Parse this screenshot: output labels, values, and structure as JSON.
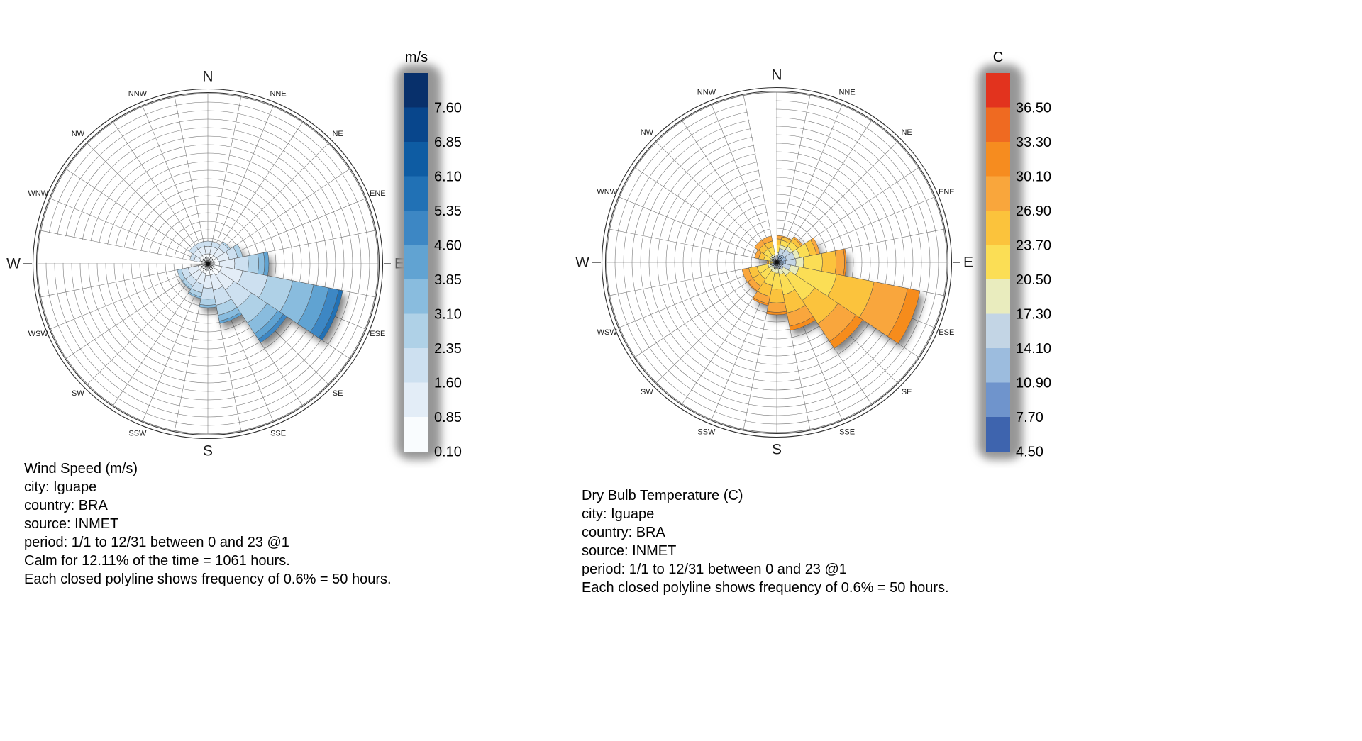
{
  "page": {
    "background": "#ffffff"
  },
  "chart_data": [
    {
      "type": "windrose",
      "title": "Wind Speed (m/s)",
      "legend_title": "m/s",
      "legend_labels": [
        "7.60",
        "6.85",
        "6.10",
        "5.35",
        "4.60",
        "3.85",
        "3.10",
        "2.35",
        "1.60",
        "0.85",
        "0.10"
      ],
      "legend_colors": [
        "#08306B",
        "#08468C",
        "#0E5CA3",
        "#2171B5",
        "#3D87C4",
        "#61A3D2",
        "#89BCDE",
        "#AFD1E7",
        "#CDE0F0",
        "#E3EDF7",
        "#F9FCFE"
      ],
      "bin_unit": "m/s",
      "ring_count": 20,
      "ring_frequency_percent": 0.6,
      "ring_frequency_hours": 50,
      "axis_max_percent": 12,
      "calm_percent": 12.11,
      "calm_hours": 1061,
      "gap_sector_deg": [
        270,
        281.25
      ],
      "directions": [
        "N",
        "NNE",
        "NE",
        "ENE",
        "E",
        "ESE",
        "SE",
        "SSE",
        "S",
        "SSW",
        "SW",
        "WSW",
        "W",
        "WNW",
        "NW",
        "NNW"
      ],
      "petal_rings_by_bin_low_to_high": [
        [
          1.0,
          0.9,
          0.6
        ],
        [
          1.0,
          0.9,
          0.6
        ],
        [
          1.0,
          1.1,
          0.7,
          0.2
        ],
        [
          1.1,
          1.3,
          1.0,
          0.6
        ],
        [
          1.2,
          1.8,
          1.6,
          1.2,
          0.7,
          0.5
        ],
        [
          1.5,
          2.5,
          3.0,
          3.0,
          2.5,
          1.8,
          1.2,
          0.5
        ],
        [
          1.5,
          2.0,
          2.5,
          2.2,
          1.5,
          0.8,
          0.5
        ],
        [
          1.2,
          1.8,
          1.8,
          1.2,
          0.7,
          0.3
        ],
        [
          1.2,
          1.5,
          1.3,
          0.7,
          0.3
        ],
        [
          1.0,
          1.3,
          1.0,
          0.5,
          0.2
        ],
        [
          1.0,
          1.2,
          0.8,
          0.4,
          0.1
        ],
        [
          1.0,
          1.2,
          0.8,
          0.5
        ],
        [
          0.2,
          0.1
        ],
        [
          0.8,
          0.7,
          0.5
        ],
        [
          1.0,
          0.9,
          0.6
        ],
        [
          1.0,
          0.9,
          0.6
        ]
      ],
      "caption_lines": [
        "Wind Speed (m/s)",
        "city: Iguape",
        "country: BRA",
        "source: INMET",
        "period: 1/1 to 12/31 between 0 and 23 @1",
        "Calm for 12.11% of the time = 1061 hours.",
        "Each closed polyline shows frequency of 0.6% = 50 hours."
      ]
    },
    {
      "type": "windrose",
      "title": "Dry Bulb Temperature (C)",
      "legend_title": "C",
      "legend_labels": [
        "36.50",
        "33.30",
        "30.10",
        "26.90",
        "23.70",
        "20.50",
        "17.30",
        "14.10",
        "10.90",
        "7.70",
        "4.50"
      ],
      "legend_colors": [
        "#E2331E",
        "#EF6A21",
        "#F68C1F",
        "#F9A63C",
        "#FBC33C",
        "#FBDE55",
        "#E9ECBE",
        "#C3D5E5",
        "#9CBCDE",
        "#6F94CC",
        "#3E64AE"
      ],
      "bin_unit": "C",
      "ring_count": 20,
      "ring_frequency_percent": 0.6,
      "ring_frequency_hours": 50,
      "axis_max_percent": 12,
      "gap_sector_deg": [
        348.75,
        360
      ],
      "directions": [
        "N",
        "NNE",
        "NE",
        "ENE",
        "E",
        "ESE",
        "SE",
        "SSE",
        "S",
        "SSW",
        "SW",
        "WSW",
        "W",
        "WNW",
        "NW",
        "NNW"
      ],
      "petal_rings_by_bin_low_to_high": [
        [
          0,
          0,
          0.2,
          0.4,
          0.4,
          0.9,
          0.7,
          0.4
        ],
        [
          0,
          0.2,
          0.6,
          0.7,
          0.4,
          0.6,
          0.4,
          0.1
        ],
        [
          0,
          0.2,
          0.7,
          0.8,
          0.4,
          0.7,
          0.5,
          0.2
        ],
        [
          0,
          0.2,
          0.8,
          1.0,
          0.6,
          1.2,
          0.8,
          0.4
        ],
        [
          0,
          0.1,
          0.8,
          1.2,
          0.9,
          2.2,
          1.6,
          1.0,
          0.2
        ],
        [
          0,
          0,
          0.5,
          1.0,
          1.0,
          4.5,
          4.5,
          4.0,
          1.5
        ],
        [
          0,
          0,
          0.3,
          0.5,
          0.9,
          3.5,
          3.3,
          2.5,
          1.0
        ],
        [
          0,
          0,
          0.2,
          0.4,
          0.7,
          2.4,
          2.2,
          1.6,
          0.5
        ],
        [
          0,
          0,
          0.2,
          0.3,
          0.6,
          1.9,
          1.6,
          1.1,
          0.3
        ],
        [
          0,
          0,
          0.2,
          0.3,
          0.5,
          1.6,
          1.3,
          0.9,
          0.2
        ],
        [
          0,
          0,
          0.2,
          0.3,
          0.4,
          1.3,
          1.0,
          0.7,
          0.1
        ],
        [
          0,
          0,
          0.2,
          0.3,
          0.4,
          1.3,
          1.0,
          0.8
        ],
        [
          0,
          0,
          0.1,
          0.1,
          0.1,
          0.3,
          0.2,
          0.2
        ],
        [
          0,
          0,
          0.1,
          0.2,
          0.3,
          0.8,
          0.6,
          0.5
        ],
        [
          0,
          0,
          0.2,
          0.3,
          0.3,
          0.9,
          0.7,
          0.6
        ],
        [
          0,
          0,
          0.2,
          0.3,
          0.3,
          0.9,
          0.7,
          0.6
        ]
      ],
      "caption_lines": [
        "Dry Bulb Temperature (C)",
        "city: Iguape",
        "country: BRA",
        "source: INMET",
        "period: 1/1 to 12/31 between 0 and 23 @1",
        "Each closed polyline shows frequency of 0.6% = 50 hours."
      ]
    }
  ]
}
